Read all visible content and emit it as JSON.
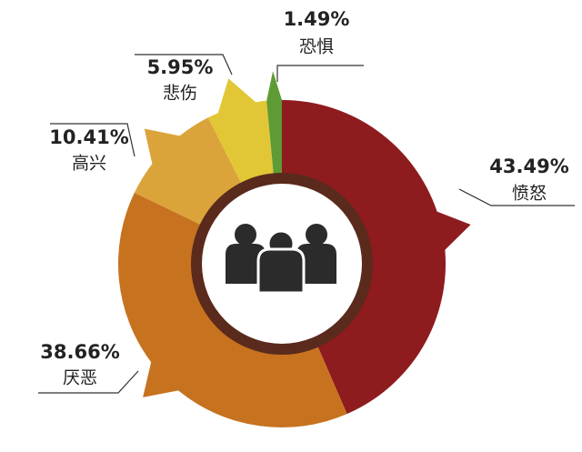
{
  "chart_data": {
    "type": "pie",
    "categories": [
      "愤怒",
      "厌恶",
      "高兴",
      "悲伤",
      "恐惧"
    ],
    "values": [
      43.49,
      38.66,
      10.41,
      5.95,
      1.49
    ],
    "value_labels": [
      "43.49%",
      "38.66%",
      "10.41%",
      "5.95%",
      "1.49%"
    ],
    "colors": [
      "#8e1b1e",
      "#c7721f",
      "#dba43b",
      "#e1c735",
      "#5e9b34"
    ]
  }
}
